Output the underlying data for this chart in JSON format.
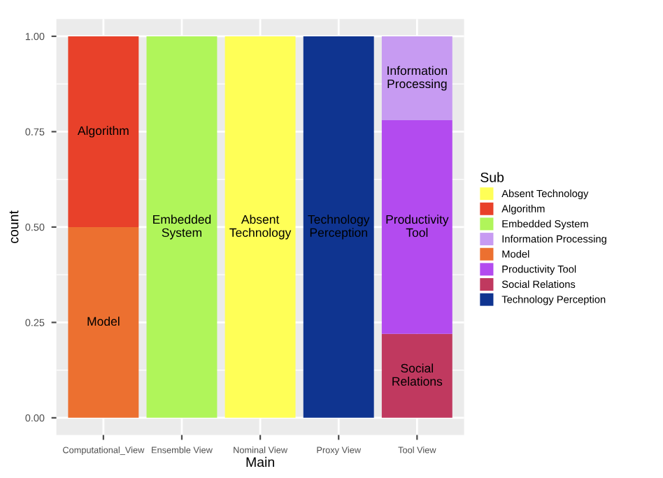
{
  "chart_data": {
    "type": "bar",
    "stacked": true,
    "xlabel": "Main",
    "ylabel": "count",
    "legend_title": "Sub",
    "legend": "right",
    "grid": true,
    "categories": [
      "Computational_View",
      "Ensemble View",
      "Nominal View",
      "Proxy View",
      "Tool View"
    ],
    "ylim": [
      -0.045,
      1.045
    ],
    "yticks": [
      {
        "value": 0,
        "label": "0.00"
      },
      {
        "value": 0.25,
        "label": "0.25"
      },
      {
        "value": 0.5,
        "label": "0.50"
      },
      {
        "value": 0.75,
        "label": "0.75"
      },
      {
        "value": 1,
        "label": "1.00"
      }
    ],
    "series": [
      {
        "name": "Technology Perception",
        "color": "#0f3490",
        "values": [
          null,
          null,
          null,
          1,
          null
        ],
        "value_labels": [
          null,
          null,
          null,
          "Technology\nPerception",
          null
        ]
      },
      {
        "name": "Social Relations",
        "color": "#c0395f",
        "values": [
          null,
          null,
          null,
          null,
          0.22
        ],
        "value_labels": [
          null,
          null,
          null,
          null,
          "Social\nRelations"
        ]
      },
      {
        "name": "Productivity Tool",
        "color": "#b34bef",
        "values": [
          null,
          null,
          null,
          null,
          0.56
        ],
        "value_labels": [
          null,
          null,
          null,
          null,
          "Productivity\nTool"
        ]
      },
      {
        "name": "Model",
        "color": "#ec7030",
        "values": [
          0.5,
          null,
          null,
          null,
          null
        ],
        "value_labels": [
          "Model",
          null,
          null,
          null,
          null
        ]
      },
      {
        "name": "Information Processing",
        "color": "#c79bf2",
        "values": [
          null,
          null,
          null,
          null,
          0.22
        ],
        "value_labels": [
          null,
          null,
          null,
          null,
          "Information\nProcessing"
        ]
      },
      {
        "name": "Embedded System",
        "color": "#b0f55a",
        "values": [
          null,
          1,
          null,
          null,
          null
        ],
        "value_labels": [
          null,
          "Embedded\nSystem",
          null,
          null,
          null
        ]
      },
      {
        "name": "Algorithm",
        "color": "#e8412a",
        "values": [
          0.5,
          null,
          null,
          null,
          null
        ],
        "value_labels": [
          "Algorithm",
          null,
          null,
          null,
          null
        ]
      },
      {
        "name": "Absent Technology",
        "color": "#ffff57",
        "values": [
          null,
          null,
          1,
          null,
          null
        ],
        "value_labels": [
          null,
          null,
          "Absent\nTechnology",
          null,
          null
        ]
      }
    ]
  }
}
